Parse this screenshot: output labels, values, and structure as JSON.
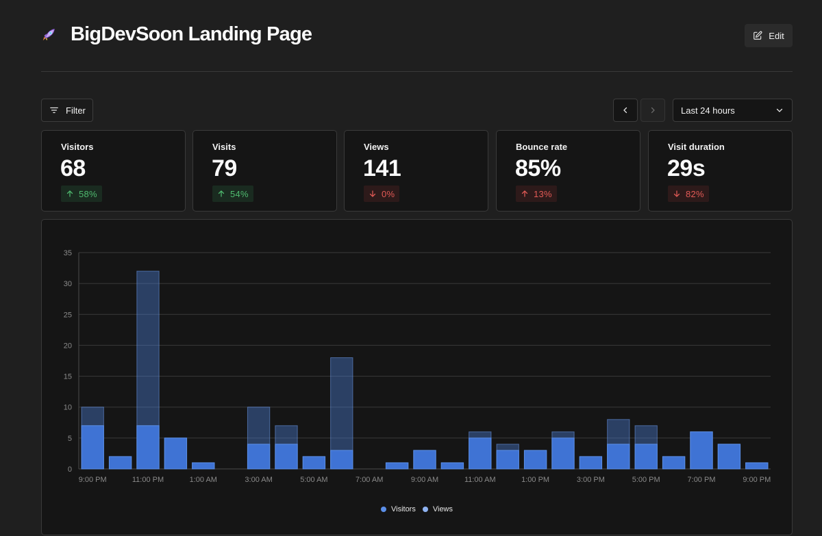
{
  "header": {
    "title": "BigDevSoon Landing Page",
    "logo_icon": "rocket-icon",
    "edit_label": "Edit"
  },
  "toolbar": {
    "filter_label": "Filter",
    "date_range": "Last 24 hours"
  },
  "stats": [
    {
      "label": "Visitors",
      "value": "68",
      "change": "58%",
      "direction": "up",
      "status": "good"
    },
    {
      "label": "Visits",
      "value": "79",
      "change": "54%",
      "direction": "up",
      "status": "good"
    },
    {
      "label": "Views",
      "value": "141",
      "change": "0%",
      "direction": "down",
      "status": "bad"
    },
    {
      "label": "Bounce rate",
      "value": "85%",
      "change": "13%",
      "direction": "up",
      "status": "bad"
    },
    {
      "label": "Visit duration",
      "value": "29s",
      "change": "82%",
      "direction": "down",
      "status": "bad"
    }
  ],
  "colors": {
    "good": "#4fba6f",
    "bad": "#e25a56",
    "visitors": "#4f85e6",
    "views": "#2e4a78"
  },
  "chart_data": {
    "type": "bar",
    "stacking": "overlay",
    "x_tick_labels": [
      "9:00 PM",
      "11:00 PM",
      "1:00 AM",
      "3:00 AM",
      "5:00 AM",
      "7:00 AM",
      "9:00 AM",
      "11:00 AM",
      "1:00 PM",
      "3:00 PM",
      "5:00 PM",
      "7:00 PM",
      "9:00 PM"
    ],
    "series": [
      {
        "name": "Visitors",
        "values": [
          7,
          2,
          7,
          5,
          1,
          0,
          4,
          4,
          2,
          3,
          0,
          1,
          3,
          1,
          5,
          3,
          3,
          5,
          2,
          4,
          4,
          2,
          6,
          4,
          1
        ]
      },
      {
        "name": "Views",
        "values": [
          10,
          2,
          32,
          5,
          1,
          0,
          10,
          7,
          2,
          18,
          0,
          1,
          3,
          1,
          6,
          4,
          3,
          6,
          2,
          8,
          7,
          2,
          6,
          4,
          1
        ]
      }
    ],
    "y_ticks": [
      0,
      5,
      10,
      15,
      20,
      25,
      30,
      35
    ],
    "ylim": [
      0,
      35
    ],
    "grid": true,
    "legend": "bottom-center"
  }
}
